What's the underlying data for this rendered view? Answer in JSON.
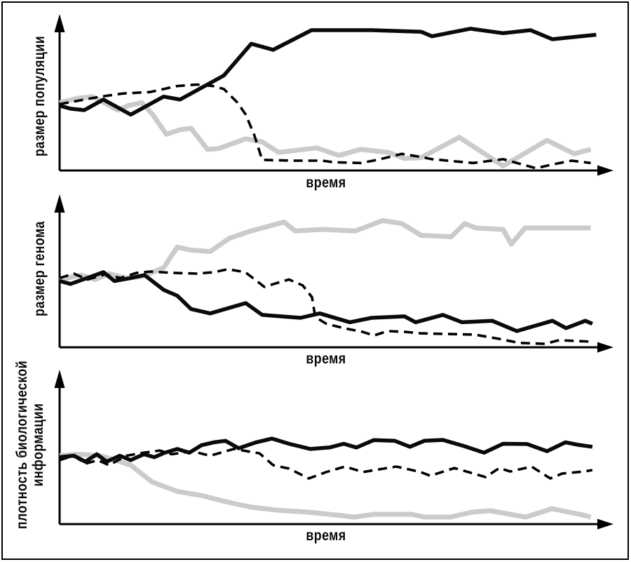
{
  "figure": {
    "background": "#ffffff",
    "border_color": "#000000",
    "axis_color": "#000000",
    "text_color": "#0b0b0b"
  },
  "chart_data": [
    {
      "type": "line",
      "title": "",
      "xlabel": "время",
      "ylabel": "размер популяции",
      "x_range": [
        0,
        100
      ],
      "y_range": [
        0,
        100
      ],
      "grid": false,
      "legend": null,
      "ticks": "none (qualitative sketch with arrow axes)",
      "series": [
        {
          "name": "gray-solid",
          "style": "solid",
          "color": "#cbcbcb",
          "stroke_width": 7,
          "points": [
            [
              0,
              45
            ],
            [
              3.5,
              48
            ],
            [
              6,
              49
            ],
            [
              8.6,
              44
            ],
            [
              10.6,
              40
            ],
            [
              12.5,
              43
            ],
            [
              15,
              45
            ],
            [
              17,
              37
            ],
            [
              19.5,
              24
            ],
            [
              22,
              27
            ],
            [
              24,
              28
            ],
            [
              27,
              14
            ],
            [
              29,
              14.5
            ],
            [
              34,
              21
            ],
            [
              37,
              19
            ],
            [
              40,
              12
            ],
            [
              47,
              15
            ],
            [
              51,
              10
            ],
            [
              55,
              14
            ],
            [
              60,
              12
            ],
            [
              63,
              8
            ],
            [
              66,
              8.5
            ],
            [
              73,
              22
            ],
            [
              81,
              3
            ],
            [
              89,
              20
            ],
            [
              94,
              11
            ],
            [
              97,
              14
            ]
          ]
        },
        {
          "name": "black-dashed",
          "style": "dashed",
          "color": "#000000",
          "stroke_width": 3.6,
          "points": [
            [
              0,
              44
            ],
            [
              3,
              46
            ],
            [
              7.5,
              49
            ],
            [
              11.5,
              51
            ],
            [
              16.5,
              52
            ],
            [
              21.5,
              56
            ],
            [
              25,
              57
            ],
            [
              28,
              56
            ],
            [
              30,
              54
            ],
            [
              32.5,
              45
            ],
            [
              34,
              37
            ],
            [
              35.5,
              24
            ],
            [
              37,
              7
            ],
            [
              43,
              6.5
            ],
            [
              48,
              6.5
            ],
            [
              50,
              5.5
            ],
            [
              55,
              5
            ],
            [
              58,
              7
            ],
            [
              62.5,
              11
            ],
            [
              66,
              9
            ],
            [
              68,
              7.5
            ],
            [
              75.5,
              5
            ],
            [
              81,
              7.5
            ],
            [
              87,
              1.5
            ],
            [
              90,
              4
            ],
            [
              93.5,
              6.5
            ],
            [
              97,
              5
            ]
          ]
        },
        {
          "name": "black-solid-thick",
          "style": "solid",
          "color": "#0a0a0a",
          "stroke_width": 5.5,
          "points": [
            [
              0,
              43
            ],
            [
              2,
              41
            ],
            [
              4.5,
              40
            ],
            [
              8,
              47
            ],
            [
              13,
              37
            ],
            [
              19,
              49
            ],
            [
              22,
              47
            ],
            [
              30,
              63
            ],
            [
              35,
              84
            ],
            [
              39,
              80
            ],
            [
              46,
              93
            ],
            [
              57,
              93
            ],
            [
              66,
              92
            ],
            [
              68,
              89
            ],
            [
              75,
              94
            ],
            [
              81,
              91
            ],
            [
              86,
              93
            ],
            [
              90,
              87
            ],
            [
              98,
              90
            ]
          ]
        }
      ]
    },
    {
      "type": "line",
      "title": "",
      "xlabel": "время",
      "ylabel": "размер генома",
      "x_range": [
        0,
        100
      ],
      "y_range": [
        0,
        100
      ],
      "grid": false,
      "legend": null,
      "ticks": "none (qualitative sketch with arrow axes)",
      "series": [
        {
          "name": "gray-solid",
          "style": "solid",
          "color": "#cbcbcb",
          "stroke_width": 7,
          "points": [
            [
              0,
              46
            ],
            [
              4,
              49
            ],
            [
              6.5,
              46
            ],
            [
              9,
              50
            ],
            [
              12,
              47
            ],
            [
              15,
              48
            ],
            [
              19,
              54
            ],
            [
              21.5,
              68
            ],
            [
              24,
              66
            ],
            [
              27.5,
              65
            ],
            [
              31,
              74
            ],
            [
              35,
              79
            ],
            [
              41,
              85
            ],
            [
              43,
              79
            ],
            [
              48,
              80
            ],
            [
              54,
              79
            ],
            [
              59,
              86
            ],
            [
              62.5,
              84
            ],
            [
              66,
              76
            ],
            [
              71.5,
              75
            ],
            [
              74,
              84
            ],
            [
              76,
              81
            ],
            [
              81,
              80
            ],
            [
              82.5,
              70
            ],
            [
              85,
              81
            ],
            [
              90,
              81
            ],
            [
              97,
              81
            ]
          ]
        },
        {
          "name": "black-dashed",
          "style": "dashed",
          "color": "#000000",
          "stroke_width": 3.6,
          "points": [
            [
              0,
              47
            ],
            [
              2.6,
              50
            ],
            [
              5.1,
              46
            ],
            [
              8.3,
              49.5
            ],
            [
              11.1,
              47
            ],
            [
              14.1,
              50.5
            ],
            [
              16.6,
              51.4
            ],
            [
              20.7,
              50.5
            ],
            [
              25,
              50
            ],
            [
              28.2,
              51
            ],
            [
              30.7,
              53
            ],
            [
              33.9,
              51
            ],
            [
              37.4,
              41
            ],
            [
              40,
              44
            ],
            [
              41.9,
              46
            ],
            [
              44.4,
              42
            ],
            [
              46.1,
              34
            ],
            [
              46.7,
              20.5
            ],
            [
              48.7,
              16
            ],
            [
              51.9,
              13
            ],
            [
              55.3,
              10.5
            ],
            [
              57.4,
              8
            ],
            [
              59.9,
              11
            ],
            [
              63,
              10.5
            ],
            [
              65.9,
              9.5
            ],
            [
              71.1,
              9
            ],
            [
              75.8,
              8.6
            ],
            [
              80.3,
              5.7
            ],
            [
              83.9,
              3
            ],
            [
              88.6,
              2.4
            ],
            [
              91.2,
              4.8
            ],
            [
              94.4,
              4.3
            ],
            [
              97.3,
              3.8
            ]
          ]
        },
        {
          "name": "black-solid-thick",
          "style": "solid",
          "color": "#0a0a0a",
          "stroke_width": 5.5,
          "points": [
            [
              0,
              45
            ],
            [
              2,
              43
            ],
            [
              5,
              47
            ],
            [
              8,
              51
            ],
            [
              10,
              45
            ],
            [
              13,
              47
            ],
            [
              15.5,
              49
            ],
            [
              19,
              39
            ],
            [
              21.5,
              35
            ],
            [
              24,
              26
            ],
            [
              27.5,
              23
            ],
            [
              34,
              30
            ],
            [
              37,
              22
            ],
            [
              44,
              20
            ],
            [
              47.5,
              23
            ],
            [
              53,
              17
            ],
            [
              57,
              20
            ],
            [
              63,
              21
            ],
            [
              65,
              17
            ],
            [
              70,
              22
            ],
            [
              73.5,
              17
            ],
            [
              79,
              18
            ],
            [
              83.5,
              11
            ],
            [
              90,
              18
            ],
            [
              92.5,
              13
            ],
            [
              96,
              18
            ],
            [
              97.3,
              16
            ]
          ]
        }
      ]
    },
    {
      "type": "line",
      "title": "",
      "xlabel": "время",
      "ylabel": "плотность биологической информации",
      "ylabel_lines": [
        "плотность биологической",
        "информации"
      ],
      "x_range": [
        0,
        100
      ],
      "y_range": [
        0,
        100
      ],
      "grid": false,
      "legend": null,
      "ticks": "none (qualitative sketch with arrow axes)",
      "series": [
        {
          "name": "gray-solid",
          "style": "solid",
          "color": "#cbcbcb",
          "stroke_width": 7,
          "points": [
            [
              0,
              46
            ],
            [
              3.2,
              47
            ],
            [
              7.4,
              46
            ],
            [
              10.2,
              43
            ],
            [
              13,
              39.6
            ],
            [
              16.9,
              28.3
            ],
            [
              21.5,
              22
            ],
            [
              26.2,
              19
            ],
            [
              28.8,
              16.5
            ],
            [
              32,
              13.7
            ],
            [
              35.2,
              11.3
            ],
            [
              39.7,
              9.4
            ],
            [
              45.5,
              8
            ],
            [
              51.5,
              5.7
            ],
            [
              53.8,
              4.7
            ],
            [
              57.4,
              6.6
            ],
            [
              64.3,
              6.6
            ],
            [
              66.6,
              4.7
            ],
            [
              71.4,
              4.7
            ],
            [
              75.2,
              8
            ],
            [
              78.7,
              9
            ],
            [
              85.1,
              4.7
            ],
            [
              89.9,
              10.4
            ],
            [
              95,
              6.6
            ],
            [
              97,
              4.7
            ]
          ]
        },
        {
          "name": "black-dashed",
          "style": "dashed",
          "color": "#000000",
          "stroke_width": 3.6,
          "points": [
            [
              0,
              43
            ],
            [
              2.6,
              46
            ],
            [
              4.7,
              40.6
            ],
            [
              7,
              43
            ],
            [
              9,
              39.6
            ],
            [
              12.2,
              46
            ],
            [
              15.4,
              48
            ],
            [
              18.3,
              49.5
            ],
            [
              20.5,
              47
            ],
            [
              24.1,
              49
            ],
            [
              27.5,
              46
            ],
            [
              31.8,
              50.5
            ],
            [
              36.5,
              47.6
            ],
            [
              39,
              39.6
            ],
            [
              41.9,
              37.3
            ],
            [
              45.5,
              30.7
            ],
            [
              48.7,
              35
            ],
            [
              52.1,
              38.7
            ],
            [
              55.4,
              35
            ],
            [
              59.2,
              37.3
            ],
            [
              61.5,
              38.7
            ],
            [
              65.9,
              35
            ],
            [
              67.7,
              32.5
            ],
            [
              72.1,
              37.7
            ],
            [
              74.3,
              35.4
            ],
            [
              77.8,
              31.6
            ],
            [
              80.3,
              37.7
            ],
            [
              82.3,
              35.4
            ],
            [
              86.2,
              38.7
            ],
            [
              89.6,
              30.7
            ],
            [
              91.8,
              34
            ],
            [
              95.8,
              35.4
            ],
            [
              97.3,
              36.3
            ]
          ]
        },
        {
          "name": "black-solid-thick",
          "style": "solid",
          "color": "#0a0a0a",
          "stroke_width": 5.5,
          "points": [
            [
              0,
              45
            ],
            [
              2.6,
              46
            ],
            [
              4.7,
              42
            ],
            [
              6.8,
              47
            ],
            [
              8.6,
              42
            ],
            [
              11,
              46
            ],
            [
              13,
              43
            ],
            [
              15.4,
              47
            ],
            [
              17.3,
              45
            ],
            [
              19.2,
              48
            ],
            [
              21.5,
              50.5
            ],
            [
              23.7,
              48
            ],
            [
              25.9,
              53
            ],
            [
              28.2,
              55
            ],
            [
              30.3,
              56
            ],
            [
              32.7,
              51
            ],
            [
              35.9,
              55
            ],
            [
              38.8,
              57.5
            ],
            [
              41.9,
              54
            ],
            [
              45.8,
              50.5
            ],
            [
              49.3,
              51.5
            ],
            [
              51.9,
              54
            ],
            [
              54.2,
              51.5
            ],
            [
              57.4,
              56.5
            ],
            [
              61.2,
              56
            ],
            [
              64,
              52
            ],
            [
              66.6,
              56
            ],
            [
              70,
              56.6
            ],
            [
              73.9,
              52.4
            ],
            [
              77.5,
              48
            ],
            [
              81,
              54
            ],
            [
              85.4,
              53.8
            ],
            [
              89,
              49
            ],
            [
              92.4,
              55
            ],
            [
              94.7,
              53.3
            ],
            [
              97.3,
              52
            ]
          ]
        }
      ]
    }
  ]
}
